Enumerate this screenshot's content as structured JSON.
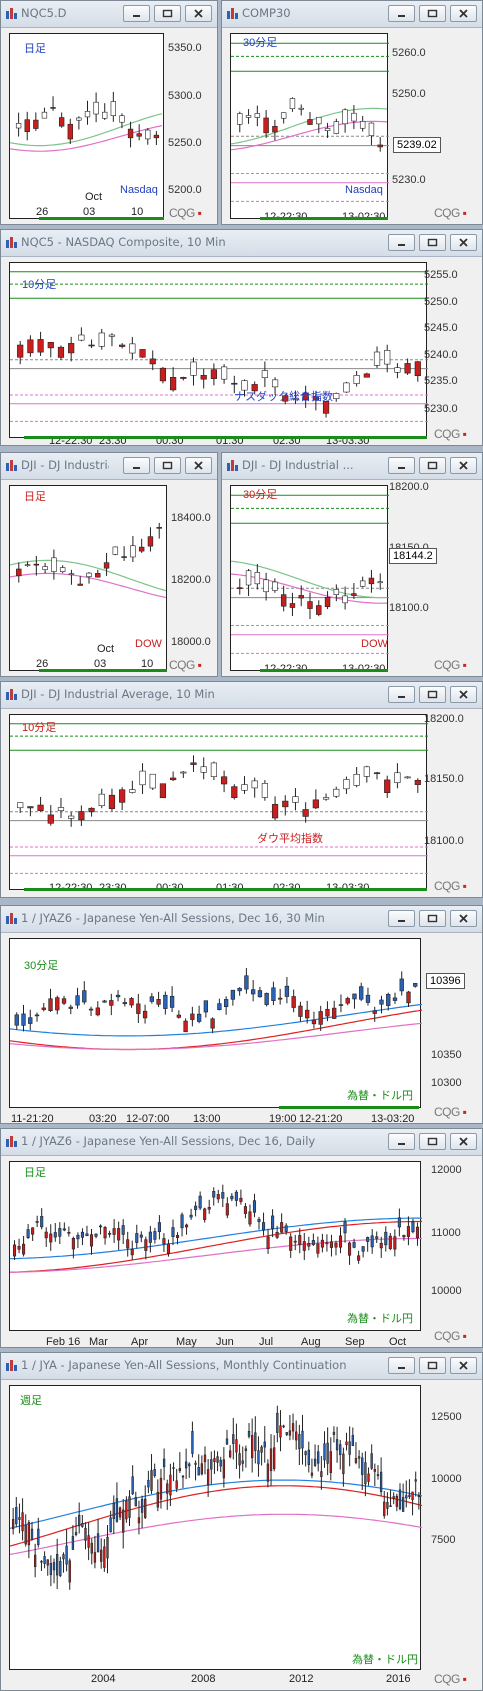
{
  "colors": {
    "up": "#ffffff",
    "down": "#c81e1e",
    "wick": "#222222",
    "green": "#1a8c1a",
    "teal": "#1aa08c",
    "pink": "#e070c8",
    "blue": "#2080e0"
  },
  "windows": [
    {
      "title": "NQC5.D",
      "label": "日足",
      "label_color": "#2040c0",
      "corner": "Nasdaq",
      "corner_color": "#2040c0",
      "yticks": [
        "5350.0",
        "5300.0",
        "5250.0",
        "5200.0"
      ],
      "xticks": [
        "26",
        "03",
        "10"
      ],
      "xsub": "Oct"
    },
    {
      "title": "COMP30",
      "label": "30分足",
      "label_color": "#2040c0",
      "corner": "Nasdaq",
      "corner_color": "#2040c0",
      "yticks": [
        "5260.0",
        "5250.0",
        "5230.0"
      ],
      "xticks": [
        "12-22:30",
        "13-02:30"
      ],
      "price": "5239.02"
    },
    {
      "title": "NQC5 - NASDAQ Composite, 10 Min",
      "label": "10分足",
      "label_color": "#2040c0",
      "corner": "ナスダック総合指数",
      "corner_color": "#2040c0",
      "yticks": [
        "5255.0",
        "5250.0",
        "5245.0",
        "5240.0",
        "5235.0",
        "5230.0"
      ],
      "xticks": [
        "12-22:30",
        "23:30",
        "00:30",
        "01:30",
        "02:30",
        "13-03:30"
      ]
    },
    {
      "title": "DJI - DJ Industrial ...",
      "label": "日足",
      "label_color": "#c81e1e",
      "corner": "DOW",
      "corner_color": "#c81e1e",
      "yticks": [
        "18400.0",
        "18200.0",
        "18000.0"
      ],
      "xticks": [
        "26",
        "03",
        "10"
      ],
      "xsub": "Oct"
    },
    {
      "title": "DJI - DJ Industrial ...",
      "label": "30分足",
      "label_color": "#c81e1e",
      "corner": "DOW",
      "corner_color": "#c81e1e",
      "yticks": [
        "18200.0",
        "18150.0",
        "18100.0"
      ],
      "xticks": [
        "12-22:30",
        "13-02:30"
      ],
      "price": "18144.2"
    },
    {
      "title": "DJI - DJ Industrial Average, 10 Min",
      "label": "10分足",
      "label_color": "#c81e1e",
      "corner": "ダウ平均指数",
      "corner_color": "#c81e1e",
      "yticks": [
        "18200.0",
        "18150.0",
        "18100.0"
      ],
      "xticks": [
        "12-22:30",
        "23:30",
        "00:30",
        "01:30",
        "02:30",
        "13-03:30"
      ]
    },
    {
      "title": "1 / JYAZ6 - Japanese Yen-All Sessions, Dec 16, 30 Min",
      "label": "30分足",
      "label_color": "#1a8c1a",
      "corner": "為替・ドル円",
      "corner_color": "#1a8c1a",
      "yticks": [
        "10350",
        "10300"
      ],
      "xticks": [
        "11-21:20",
        "03:20",
        "12-07:00",
        "13:00",
        "19:00",
        "12-21:20",
        "13-03:20"
      ],
      "price": "10396"
    },
    {
      "title": "1 / JYAZ6 - Japanese Yen-All Sessions, Dec 16, Daily",
      "label": "日足",
      "label_color": "#1a8c1a",
      "corner": "為替・ドル円",
      "corner_color": "#1a8c1a",
      "yticks": [
        "12000",
        "11000",
        "10000"
      ],
      "xticks": [
        "Feb 16",
        "Mar",
        "Apr",
        "May",
        "Jun",
        "Jul",
        "Aug",
        "Sep",
        "Oct"
      ]
    },
    {
      "title": "1 / JYA - Japanese Yen-All Sessions, Monthly Continuation",
      "label": "週足",
      "label_color": "#1a8c1a",
      "corner": "為替・ドル円",
      "corner_color": "#1a8c1a",
      "yticks": [
        "12500",
        "10000",
        "7500"
      ],
      "xticks": [
        "2004",
        "2008",
        "2012",
        "2016"
      ]
    }
  ],
  "logo": "CQG"
}
